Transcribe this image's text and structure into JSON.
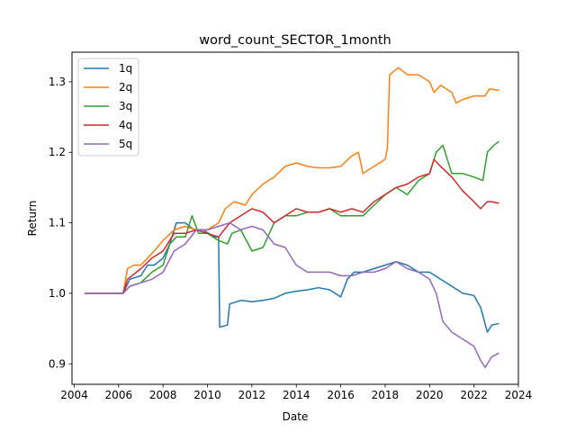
{
  "chart_data": {
    "type": "line",
    "title": "word_count_SECTOR_1month",
    "xlabel": "Date",
    "ylabel": "Return",
    "xlim": [
      2003.9,
      2024.0
    ],
    "ylim": [
      0.871,
      1.342
    ],
    "xticks": [
      2004,
      2006,
      2008,
      2010,
      2012,
      2014,
      2016,
      2018,
      2020,
      2022,
      2024
    ],
    "yticks": [
      0.9,
      1.0,
      1.1,
      1.2,
      1.3
    ],
    "grid": false,
    "legend_position": "top-left",
    "series": [
      {
        "name": "1q",
        "color": "#1f77b4",
        "points": [
          [
            2004.5,
            1.0
          ],
          [
            2006.2,
            1.0
          ],
          [
            2006.5,
            1.02
          ],
          [
            2007.0,
            1.025
          ],
          [
            2007.3,
            1.04
          ],
          [
            2007.6,
            1.04
          ],
          [
            2008.0,
            1.05
          ],
          [
            2008.3,
            1.07
          ],
          [
            2008.6,
            1.1
          ],
          [
            2009.0,
            1.1
          ],
          [
            2009.4,
            1.09
          ],
          [
            2009.8,
            1.09
          ],
          [
            2010.3,
            1.08
          ],
          [
            2010.5,
            1.08
          ],
          [
            2010.55,
            0.952
          ],
          [
            2010.9,
            0.955
          ],
          [
            2011.0,
            0.985
          ],
          [
            2011.5,
            0.99
          ],
          [
            2012.0,
            0.988
          ],
          [
            2012.5,
            0.99
          ],
          [
            2013.0,
            0.993
          ],
          [
            2013.5,
            1.0
          ],
          [
            2014.0,
            1.003
          ],
          [
            2014.5,
            1.005
          ],
          [
            2015.0,
            1.008
          ],
          [
            2015.5,
            1.005
          ],
          [
            2016.0,
            0.995
          ],
          [
            2016.3,
            1.02
          ],
          [
            2016.6,
            1.03
          ],
          [
            2017.0,
            1.03
          ],
          [
            2017.5,
            1.035
          ],
          [
            2018.0,
            1.04
          ],
          [
            2018.5,
            1.045
          ],
          [
            2019.0,
            1.04
          ],
          [
            2019.5,
            1.03
          ],
          [
            2020.0,
            1.03
          ],
          [
            2020.5,
            1.02
          ],
          [
            2021.0,
            1.01
          ],
          [
            2021.5,
            1.0
          ],
          [
            2022.0,
            0.997
          ],
          [
            2022.3,
            0.98
          ],
          [
            2022.6,
            0.945
          ],
          [
            2022.8,
            0.955
          ],
          [
            2023.1,
            0.957
          ]
        ]
      },
      {
        "name": "2q",
        "color": "#ff7f0e",
        "points": [
          [
            2004.5,
            1.0
          ],
          [
            2006.2,
            1.0
          ],
          [
            2006.4,
            1.035
          ],
          [
            2006.7,
            1.04
          ],
          [
            2007.0,
            1.04
          ],
          [
            2007.3,
            1.05
          ],
          [
            2007.6,
            1.06
          ],
          [
            2008.0,
            1.075
          ],
          [
            2008.5,
            1.09
          ],
          [
            2009.0,
            1.095
          ],
          [
            2009.5,
            1.09
          ],
          [
            2010.0,
            1.09
          ],
          [
            2010.5,
            1.1
          ],
          [
            2010.8,
            1.12
          ],
          [
            2011.2,
            1.13
          ],
          [
            2011.7,
            1.125
          ],
          [
            2012.0,
            1.14
          ],
          [
            2012.5,
            1.155
          ],
          [
            2013.0,
            1.165
          ],
          [
            2013.5,
            1.18
          ],
          [
            2014.0,
            1.185
          ],
          [
            2014.5,
            1.18
          ],
          [
            2015.0,
            1.178
          ],
          [
            2015.5,
            1.178
          ],
          [
            2016.0,
            1.18
          ],
          [
            2016.5,
            1.195
          ],
          [
            2016.8,
            1.2
          ],
          [
            2017.0,
            1.17
          ],
          [
            2017.5,
            1.18
          ],
          [
            2018.0,
            1.19
          ],
          [
            2018.1,
            1.205
          ],
          [
            2018.2,
            1.31
          ],
          [
            2018.6,
            1.32
          ],
          [
            2019.0,
            1.31
          ],
          [
            2019.5,
            1.31
          ],
          [
            2020.0,
            1.3
          ],
          [
            2020.2,
            1.285
          ],
          [
            2020.5,
            1.295
          ],
          [
            2021.0,
            1.285
          ],
          [
            2021.2,
            1.27
          ],
          [
            2021.5,
            1.275
          ],
          [
            2022.0,
            1.28
          ],
          [
            2022.5,
            1.28
          ],
          [
            2022.7,
            1.29
          ],
          [
            2023.1,
            1.288
          ]
        ]
      },
      {
        "name": "3q",
        "color": "#2ca02c",
        "points": [
          [
            2004.5,
            1.0
          ],
          [
            2006.2,
            1.0
          ],
          [
            2006.5,
            1.01
          ],
          [
            2007.0,
            1.015
          ],
          [
            2007.5,
            1.03
          ],
          [
            2008.0,
            1.04
          ],
          [
            2008.3,
            1.07
          ],
          [
            2008.6,
            1.08
          ],
          [
            2009.0,
            1.08
          ],
          [
            2009.3,
            1.11
          ],
          [
            2009.6,
            1.085
          ],
          [
            2010.0,
            1.085
          ],
          [
            2010.5,
            1.075
          ],
          [
            2010.9,
            1.07
          ],
          [
            2011.1,
            1.085
          ],
          [
            2011.5,
            1.09
          ],
          [
            2012.0,
            1.06
          ],
          [
            2012.5,
            1.065
          ],
          [
            2013.0,
            1.1
          ],
          [
            2013.5,
            1.11
          ],
          [
            2014.0,
            1.11
          ],
          [
            2014.5,
            1.115
          ],
          [
            2015.0,
            1.115
          ],
          [
            2015.5,
            1.12
          ],
          [
            2016.0,
            1.11
          ],
          [
            2016.5,
            1.11
          ],
          [
            2017.0,
            1.11
          ],
          [
            2017.5,
            1.125
          ],
          [
            2018.0,
            1.14
          ],
          [
            2018.5,
            1.15
          ],
          [
            2019.0,
            1.14
          ],
          [
            2019.5,
            1.16
          ],
          [
            2020.0,
            1.17
          ],
          [
            2020.3,
            1.2
          ],
          [
            2020.6,
            1.21
          ],
          [
            2021.0,
            1.17
          ],
          [
            2021.5,
            1.17
          ],
          [
            2022.0,
            1.165
          ],
          [
            2022.4,
            1.16
          ],
          [
            2022.6,
            1.2
          ],
          [
            2022.9,
            1.21
          ],
          [
            2023.1,
            1.215
          ]
        ]
      },
      {
        "name": "4q",
        "color": "#d62728",
        "points": [
          [
            2004.5,
            1.0
          ],
          [
            2006.2,
            1.0
          ],
          [
            2006.4,
            1.02
          ],
          [
            2007.0,
            1.035
          ],
          [
            2007.5,
            1.05
          ],
          [
            2008.0,
            1.06
          ],
          [
            2008.5,
            1.085
          ],
          [
            2009.0,
            1.085
          ],
          [
            2009.5,
            1.09
          ],
          [
            2010.0,
            1.085
          ],
          [
            2010.5,
            1.08
          ],
          [
            2011.0,
            1.1
          ],
          [
            2011.5,
            1.11
          ],
          [
            2012.0,
            1.12
          ],
          [
            2012.5,
            1.115
          ],
          [
            2013.0,
            1.1
          ],
          [
            2013.5,
            1.11
          ],
          [
            2014.0,
            1.12
          ],
          [
            2014.5,
            1.115
          ],
          [
            2015.0,
            1.115
          ],
          [
            2015.5,
            1.12
          ],
          [
            2016.0,
            1.115
          ],
          [
            2016.5,
            1.12
          ],
          [
            2017.0,
            1.115
          ],
          [
            2017.5,
            1.13
          ],
          [
            2018.0,
            1.14
          ],
          [
            2018.5,
            1.15
          ],
          [
            2019.0,
            1.155
          ],
          [
            2019.5,
            1.165
          ],
          [
            2020.0,
            1.17
          ],
          [
            2020.2,
            1.19
          ],
          [
            2020.5,
            1.18
          ],
          [
            2021.0,
            1.165
          ],
          [
            2021.5,
            1.145
          ],
          [
            2022.0,
            1.13
          ],
          [
            2022.3,
            1.12
          ],
          [
            2022.6,
            1.13
          ],
          [
            2022.8,
            1.13
          ],
          [
            2023.1,
            1.128
          ]
        ]
      },
      {
        "name": "5q",
        "color": "#9467bd",
        "points": [
          [
            2004.5,
            1.0
          ],
          [
            2006.2,
            1.0
          ],
          [
            2006.5,
            1.01
          ],
          [
            2007.0,
            1.015
          ],
          [
            2007.5,
            1.02
          ],
          [
            2008.0,
            1.03
          ],
          [
            2008.5,
            1.06
          ],
          [
            2009.0,
            1.07
          ],
          [
            2009.5,
            1.09
          ],
          [
            2010.0,
            1.09
          ],
          [
            2010.5,
            1.095
          ],
          [
            2011.0,
            1.1
          ],
          [
            2011.5,
            1.09
          ],
          [
            2012.0,
            1.095
          ],
          [
            2012.5,
            1.09
          ],
          [
            2013.0,
            1.07
          ],
          [
            2013.5,
            1.065
          ],
          [
            2014.0,
            1.04
          ],
          [
            2014.5,
            1.03
          ],
          [
            2015.0,
            1.03
          ],
          [
            2015.5,
            1.03
          ],
          [
            2016.0,
            1.025
          ],
          [
            2016.5,
            1.025
          ],
          [
            2017.0,
            1.03
          ],
          [
            2017.5,
            1.03
          ],
          [
            2018.0,
            1.035
          ],
          [
            2018.5,
            1.045
          ],
          [
            2019.0,
            1.035
          ],
          [
            2019.5,
            1.03
          ],
          [
            2020.0,
            1.02
          ],
          [
            2020.3,
            1.0
          ],
          [
            2020.6,
            0.96
          ],
          [
            2021.0,
            0.945
          ],
          [
            2021.5,
            0.935
          ],
          [
            2022.0,
            0.925
          ],
          [
            2022.3,
            0.905
          ],
          [
            2022.5,
            0.895
          ],
          [
            2022.8,
            0.91
          ],
          [
            2023.1,
            0.915
          ]
        ]
      }
    ]
  }
}
